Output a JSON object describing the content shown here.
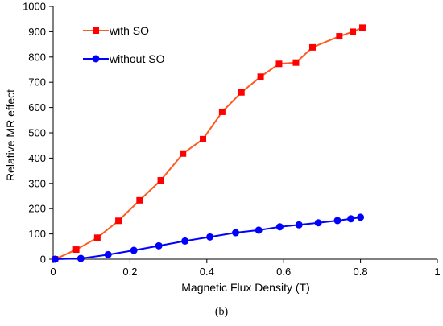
{
  "chart_data": {
    "type": "line",
    "title": "",
    "xlabel": "Magnetic Flux Density (T)",
    "ylabel": "Relative MR effect",
    "xlim": [
      0,
      1
    ],
    "ylim": [
      0,
      1000
    ],
    "x_ticks": [
      0,
      0.2,
      0.4,
      0.6,
      0.8,
      1
    ],
    "x_tick_labels": [
      "0",
      "0.2",
      "0.4",
      "0.6",
      "0.8",
      "1"
    ],
    "y_ticks": [
      0,
      100,
      200,
      300,
      400,
      500,
      600,
      700,
      800,
      900,
      1000
    ],
    "y_tick_labels": [
      "0",
      "100",
      "200",
      "300",
      "400",
      "500",
      "600",
      "700",
      "800",
      "900",
      "1000"
    ],
    "grid": false,
    "legend_position": "top-left",
    "series": [
      {
        "name": "with SO",
        "color": "#ff5a1f",
        "marker": "square",
        "marker_color": "#ff0000",
        "x": [
          0.005,
          0.06,
          0.115,
          0.17,
          0.225,
          0.28,
          0.338,
          0.39,
          0.44,
          0.49,
          0.54,
          0.588,
          0.632,
          0.675,
          0.745,
          0.78,
          0.805
        ],
        "y": [
          0,
          38,
          85,
          152,
          233,
          312,
          418,
          475,
          583,
          660,
          722,
          773,
          778,
          838,
          882,
          900,
          916
        ]
      },
      {
        "name": "without SO",
        "color": "#0000ff",
        "marker": "circle",
        "marker_color": "#0000ff",
        "x": [
          0.005,
          0.072,
          0.143,
          0.21,
          0.275,
          0.343,
          0.408,
          0.475,
          0.535,
          0.59,
          0.64,
          0.69,
          0.74,
          0.775,
          0.8
        ],
        "y": [
          0,
          3,
          18,
          35,
          53,
          72,
          88,
          105,
          115,
          128,
          136,
          144,
          153,
          160,
          166
        ]
      }
    ]
  },
  "caption": "(b)"
}
